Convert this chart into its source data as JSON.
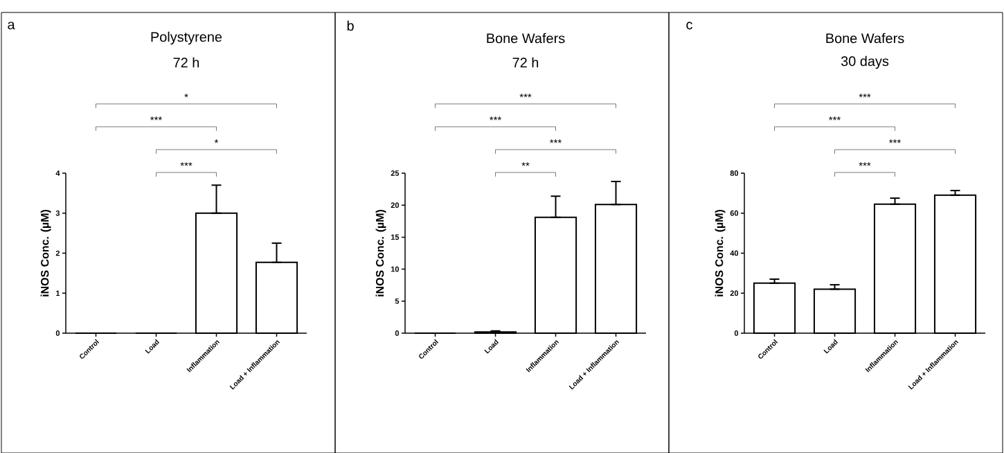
{
  "chart_data": [
    {
      "type": "bar",
      "title": "Polystyrene",
      "subtitle": "72 h",
      "ylabel": "iNOS Conc. (µM)",
      "color": "#000000",
      "categories": [
        "Control",
        "Load",
        "Inflammation",
        "Load + Inflammation"
      ],
      "values": [
        0,
        0,
        3.0,
        1.77
      ],
      "errors": [
        null,
        null,
        [
          3.0,
          3.7
        ],
        [
          1.77,
          2.25
        ]
      ],
      "ylim": [
        0,
        4
      ],
      "yticks": [
        0,
        1,
        2,
        3,
        4
      ],
      "annotations": [
        "a",
        "*",
        "***",
        "*",
        "***"
      ]
    },
    {
      "type": "bar",
      "title": "Bone Wafers",
      "subtitle": "72 h",
      "ylabel": "iNOS Conc. (µM)",
      "color": "#000000",
      "categories": [
        "Control",
        "Load",
        "Inflammation",
        "Load + Inflammation"
      ],
      "values": [
        0,
        0.2,
        18.1,
        20.1
      ],
      "errors": [
        null,
        [
          0.2,
          0.35
        ],
        [
          18.1,
          21.4
        ],
        [
          20.1,
          23.7
        ]
      ],
      "ylim": [
        0,
        25
      ],
      "yticks": [
        0,
        5,
        10,
        15,
        20,
        25
      ],
      "annotations": [
        "b",
        "***",
        "***",
        "***",
        "**"
      ]
    },
    {
      "type": "bar",
      "title": "Bone Wafers",
      "subtitle": "30 days",
      "ylabel": "iNOS Conc. (µM)",
      "color": "#000000",
      "categories": [
        "Control",
        "Load",
        "Inflammation",
        "Load + Inflammation"
      ],
      "values": [
        25,
        22,
        64.5,
        69
      ],
      "errors": [
        [
          25,
          27
        ],
        [
          22,
          24.2
        ],
        [
          64.5,
          67.5
        ],
        [
          69,
          71.3
        ]
      ],
      "ylim": [
        0,
        80
      ],
      "yticks": [
        0,
        20,
        40,
        60,
        80
      ],
      "annotations": [
        "c",
        "***",
        "***",
        "***",
        "***"
      ]
    }
  ]
}
